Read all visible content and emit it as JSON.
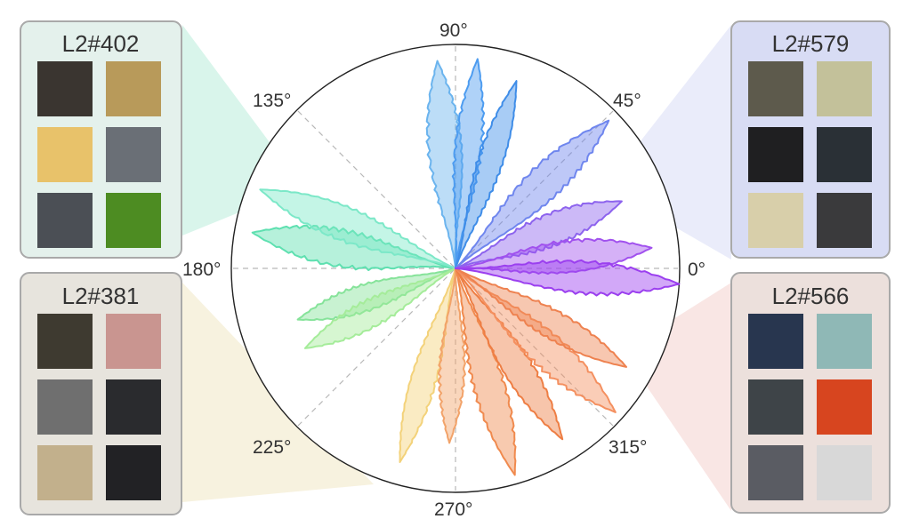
{
  "polar_plot": {
    "angle_labels": [
      "0°",
      "45°",
      "90°",
      "135°",
      "180°",
      "225°",
      "270°",
      "315°"
    ],
    "petals": [
      {
        "name": "petal-green-1",
        "direction_deg": 170,
        "reach": 0.92,
        "width_deg": 10,
        "color": "#5ee0b0"
      },
      {
        "name": "petal-green-2",
        "direction_deg": 158,
        "reach": 0.94,
        "width_deg": 9,
        "color": "#7ce8c8"
      },
      {
        "name": "petal-green-3",
        "direction_deg": 198,
        "reach": 0.74,
        "width_deg": 9,
        "color": "#86e39a"
      },
      {
        "name": "petal-green-4",
        "direction_deg": 208,
        "reach": 0.76,
        "width_deg": 9,
        "color": "#a5ec9a"
      },
      {
        "name": "petal-yellow",
        "direction_deg": 254,
        "reach": 0.9,
        "width_deg": 7,
        "color": "#f3d27a"
      },
      {
        "name": "petal-orange-1",
        "direction_deg": 268,
        "reach": 0.78,
        "width_deg": 8,
        "color": "#f2a36a"
      },
      {
        "name": "petal-orange-2",
        "direction_deg": 286,
        "reach": 0.96,
        "width_deg": 8,
        "color": "#f08a4e"
      },
      {
        "name": "petal-orange-3",
        "direction_deg": 302,
        "reach": 0.9,
        "width_deg": 8,
        "color": "#ee7e44"
      },
      {
        "name": "petal-orange-4",
        "direction_deg": 318,
        "reach": 0.96,
        "width_deg": 9,
        "color": "#f49060"
      },
      {
        "name": "petal-orange-5",
        "direction_deg": 330,
        "reach": 0.88,
        "width_deg": 8,
        "color": "#ee8250"
      },
      {
        "name": "petal-blue-1",
        "direction_deg": 95,
        "reach": 0.93,
        "width_deg": 9,
        "color": "#6bb4ee"
      },
      {
        "name": "petal-blue-2",
        "direction_deg": 84,
        "reach": 0.94,
        "width_deg": 7,
        "color": "#4d9cf0"
      },
      {
        "name": "petal-blue-3",
        "direction_deg": 72,
        "reach": 0.88,
        "width_deg": 7,
        "color": "#3f8de8"
      },
      {
        "name": "petal-blue-4",
        "direction_deg": 44,
        "reach": 0.95,
        "width_deg": 9,
        "color": "#6f86ee"
      },
      {
        "name": "petal-purple-1",
        "direction_deg": 22,
        "reach": 0.8,
        "width_deg": 10,
        "color": "#8d63ee"
      },
      {
        "name": "petal-purple-2",
        "direction_deg": 6,
        "reach": 0.88,
        "width_deg": 9,
        "color": "#a151ee"
      },
      {
        "name": "petal-purple-3",
        "direction_deg": -4,
        "reach": 1.0,
        "width_deg": 8,
        "color": "#9b3fef"
      }
    ]
  },
  "panels": [
    {
      "name": "panel-l2-402",
      "title": "L2#402",
      "bg": "#e4f1ec",
      "wedge_color": "#c9f1e3",
      "tiles": [
        [
          "#3a3530",
          "#b89a5a"
        ],
        [
          "#e8c26a",
          "#6a6f76"
        ],
        [
          "#4b4f55",
          "#4d8c22"
        ]
      ]
    },
    {
      "name": "panel-l2-381",
      "title": "L2#381",
      "bg": "#e7e4dd",
      "wedge_color": "#f4ecd2",
      "tiles": [
        [
          "#3e3a30",
          "#c99590"
        ],
        [
          "#6f6f6f",
          "#2a2b2e"
        ],
        [
          "#c2b08c",
          "#222225"
        ]
      ]
    },
    {
      "name": "panel-l2-579",
      "title": "L2#579",
      "bg": "#d8dcf4",
      "wedge_color": "#e1e4f8",
      "tiles": [
        [
          "#5d5a4c",
          "#c3c19a"
        ],
        [
          "#1f1f21",
          "#2a3036"
        ],
        [
          "#d8cfaa",
          "#3a3a3c"
        ]
      ]
    },
    {
      "name": "panel-l2-566",
      "title": "L2#566",
      "bg": "#ece0dc",
      "wedge_color": "#f6dcd8",
      "tiles": [
        [
          "#28364f",
          "#8fb8b6"
        ],
        [
          "#3e4448",
          "#d7451f"
        ],
        [
          "#5a5c63",
          "#d8d8d8"
        ]
      ]
    }
  ]
}
